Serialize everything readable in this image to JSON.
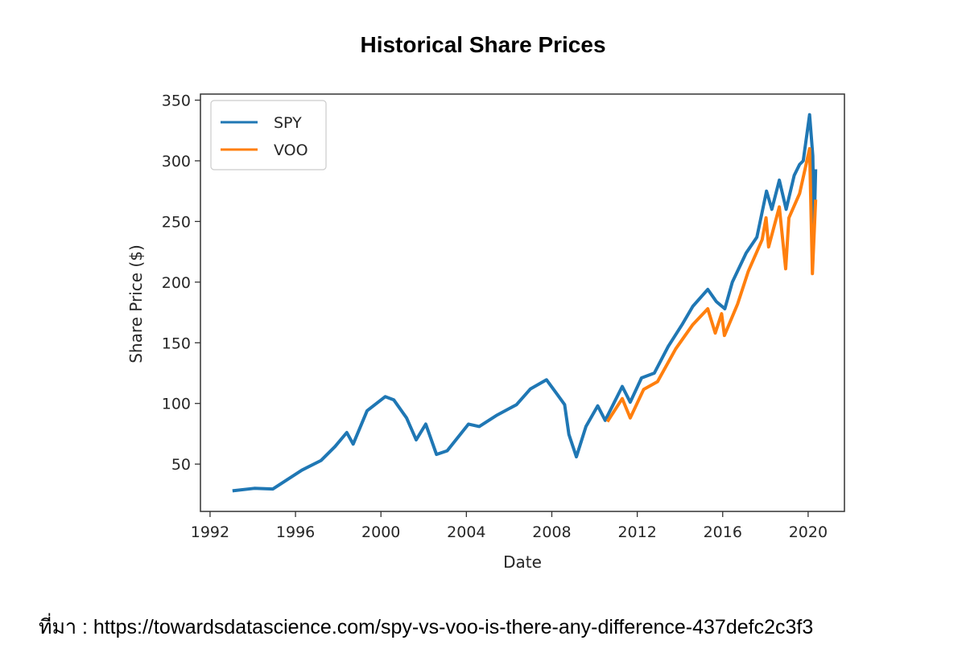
{
  "title": "Historical Share Prices",
  "source_note": "ที่มา : https://towardsdatascience.com/spy-vs-voo-is-there-any-difference-437defc2c3f3",
  "chart_data": {
    "type": "line",
    "title": "Historical Share Prices",
    "xlabel": "Date",
    "ylabel": "Share Price ($)",
    "xlim": [
      1991.55,
      2021.7
    ],
    "ylim": [
      11,
      355
    ],
    "xticks": [
      1992,
      1996,
      2000,
      2004,
      2008,
      2012,
      2016,
      2020
    ],
    "yticks": [
      50,
      100,
      150,
      200,
      250,
      300,
      350
    ],
    "grid": false,
    "legend_placement": "top-left",
    "series": [
      {
        "name": "SPY",
        "color": "#1f77b4",
        "x": [
          1993.05,
          1994.07,
          1994.94,
          1996.3,
          1997.2,
          1997.85,
          1998.4,
          1998.7,
          1999.35,
          2000.2,
          2000.6,
          2001.2,
          2001.65,
          2002.1,
          2002.6,
          2003.1,
          2004.1,
          2004.6,
          2005.4,
          2006.35,
          2007.0,
          2007.75,
          2008.25,
          2008.6,
          2008.8,
          2009.15,
          2009.6,
          2010.15,
          2010.5,
          2011.3,
          2011.67,
          2012.2,
          2012.8,
          2013.45,
          2014.1,
          2014.6,
          2015.3,
          2015.7,
          2016.1,
          2016.45,
          2017.1,
          2017.6,
          2018.05,
          2018.3,
          2018.65,
          2018.97,
          2019.35,
          2019.6,
          2019.77,
          2020.07,
          2020.22,
          2020.28,
          2020.35
        ],
        "y": [
          28,
          30,
          29.5,
          45,
          53,
          64.5,
          76,
          66.5,
          94,
          105.6,
          103,
          88,
          70,
          83,
          58,
          61,
          83,
          81,
          90,
          99,
          112,
          119.5,
          107.6,
          99,
          74.5,
          56,
          81,
          98,
          86,
          114,
          101,
          121,
          125,
          147,
          165,
          180,
          194,
          184,
          178,
          200,
          224,
          237,
          275,
          260,
          284,
          260,
          288,
          297,
          300,
          338,
          304,
          242,
          293
        ]
      },
      {
        "name": "VOO",
        "color": "#ff7f0e",
        "x": [
          2010.6,
          2011.3,
          2011.67,
          2012.3,
          2012.95,
          2013.8,
          2014.6,
          2015.3,
          2015.65,
          2015.95,
          2016.08,
          2016.7,
          2017.2,
          2017.85,
          2018.03,
          2018.15,
          2018.65,
          2018.95,
          2019.1,
          2019.6,
          2020.07,
          2020.2,
          2020.35
        ],
        "y": [
          85,
          104,
          88,
          111.6,
          118,
          145,
          165,
          178,
          158,
          174,
          156,
          182,
          209,
          235,
          253,
          229,
          262,
          211,
          253,
          273,
          310,
          207,
          268
        ]
      }
    ]
  }
}
